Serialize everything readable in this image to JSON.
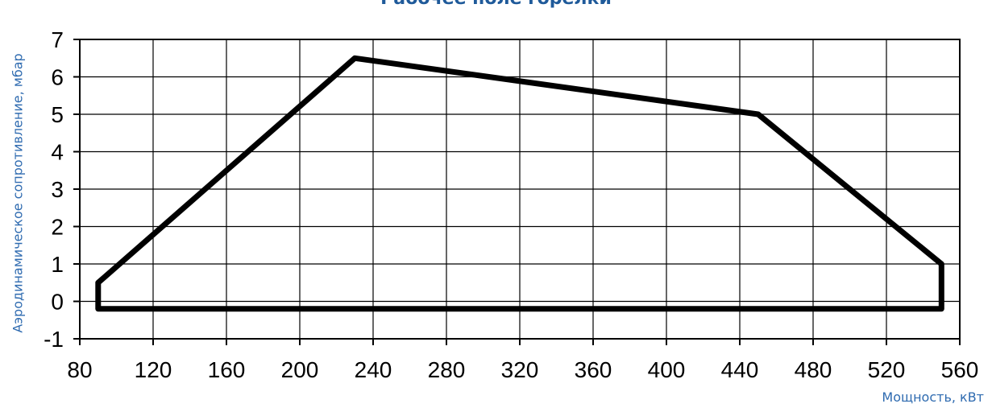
{
  "chart_data": {
    "type": "area",
    "title": "Рабочее поле горелки",
    "xlabel": "Мощность, кВт",
    "ylabel": "Аэродинамическое сопротивление, мбар",
    "xlim": [
      80,
      560
    ],
    "ylim": [
      -1,
      7
    ],
    "x_ticks": [
      80,
      120,
      160,
      200,
      240,
      280,
      320,
      360,
      400,
      440,
      480,
      520,
      560
    ],
    "y_ticks": [
      -1,
      0,
      1,
      2,
      3,
      4,
      5,
      6,
      7
    ],
    "grid": true,
    "series": [
      {
        "x": [
          90,
          90,
          230,
          450,
          550,
          550,
          90
        ],
        "y": [
          -0.2,
          0.5,
          6.5,
          5.0,
          1.0,
          -0.2,
          -0.2
        ],
        "color": "#000000"
      }
    ]
  }
}
